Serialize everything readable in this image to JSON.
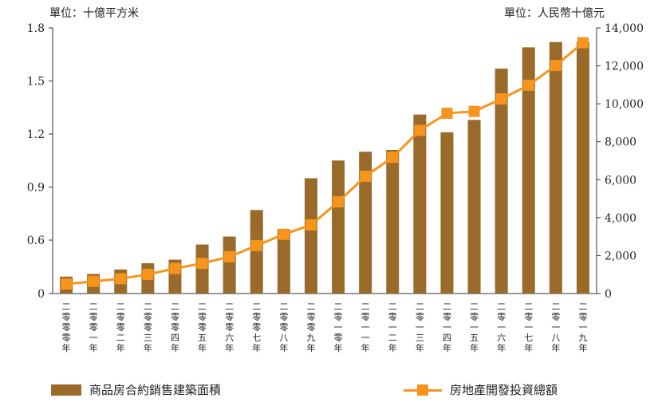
{
  "chart_data": {
    "type": "bar-line combo",
    "unit_left": "單位：十億平方米",
    "unit_right": "單位：人民幣十億元",
    "categories": [
      "二零零零年",
      "二零零一年",
      "二零零二年",
      "二零零三年",
      "二零零四年",
      "二零零五年",
      "二零零六年",
      "二零零七年",
      "二零零八年",
      "二零零九年",
      "二零一零年",
      "二零一一年",
      "二零一二年",
      "二零一三年",
      "二零一四年",
      "二零一五年",
      "二零一六年",
      "二零一七年",
      "二零一八年",
      "二零一九年"
    ],
    "left_axis": {
      "min": 0,
      "max": 1.8,
      "ticks": [
        "0",
        "0.6",
        "0.9",
        "1.2",
        "1.5",
        "1.8"
      ]
    },
    "right_axis": {
      "min": 0,
      "max": 14000,
      "ticks": [
        "0",
        "2,000",
        "4,000",
        "6,000",
        "8,000",
        "10,000",
        "12,000",
        "14,000"
      ]
    },
    "series": [
      {
        "name": "商品房合約銷售建築面積",
        "type": "bar",
        "axis": "left",
        "color": "#9a6a2a",
        "values": [
          0.19,
          0.22,
          0.27,
          0.34,
          0.38,
          0.55,
          0.62,
          0.77,
          0.66,
          0.95,
          1.05,
          1.1,
          1.11,
          1.31,
          1.21,
          1.28,
          1.57,
          1.69,
          1.72,
          1.72
        ]
      },
      {
        "name": "房地產開發投資總額",
        "type": "line",
        "axis": "right",
        "color": "#f7941d",
        "values": [
          500,
          640,
          780,
          1010,
          1320,
          1590,
          1940,
          2530,
          3120,
          3620,
          4830,
          6180,
          7180,
          8600,
          9500,
          9600,
          10260,
          10980,
          12020,
          13220
        ]
      }
    ]
  }
}
